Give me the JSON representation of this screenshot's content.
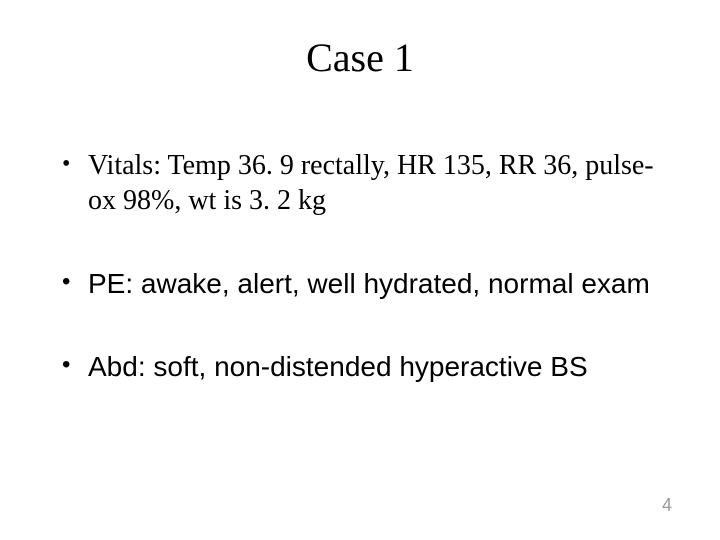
{
  "title": "Case 1",
  "bullets": [
    {
      "text": "Vitals: Temp 36. 9 rectally, HR 135, RR 36, pulse-ox 98%, wt is 3. 2 kg",
      "font": "serif"
    },
    {
      "text": "PE: awake, alert, well hydrated, normal exam",
      "font": "sans"
    },
    {
      "text": "Abd: soft, non-distended hyperactive BS",
      "font": "sans"
    }
  ],
  "page_number": "4",
  "colors": {
    "background": "#ffffff",
    "text": "#000000",
    "pageno": "#9a9a9a"
  },
  "fontsizes": {
    "title": 40,
    "body": 28,
    "pageno": 18
  }
}
